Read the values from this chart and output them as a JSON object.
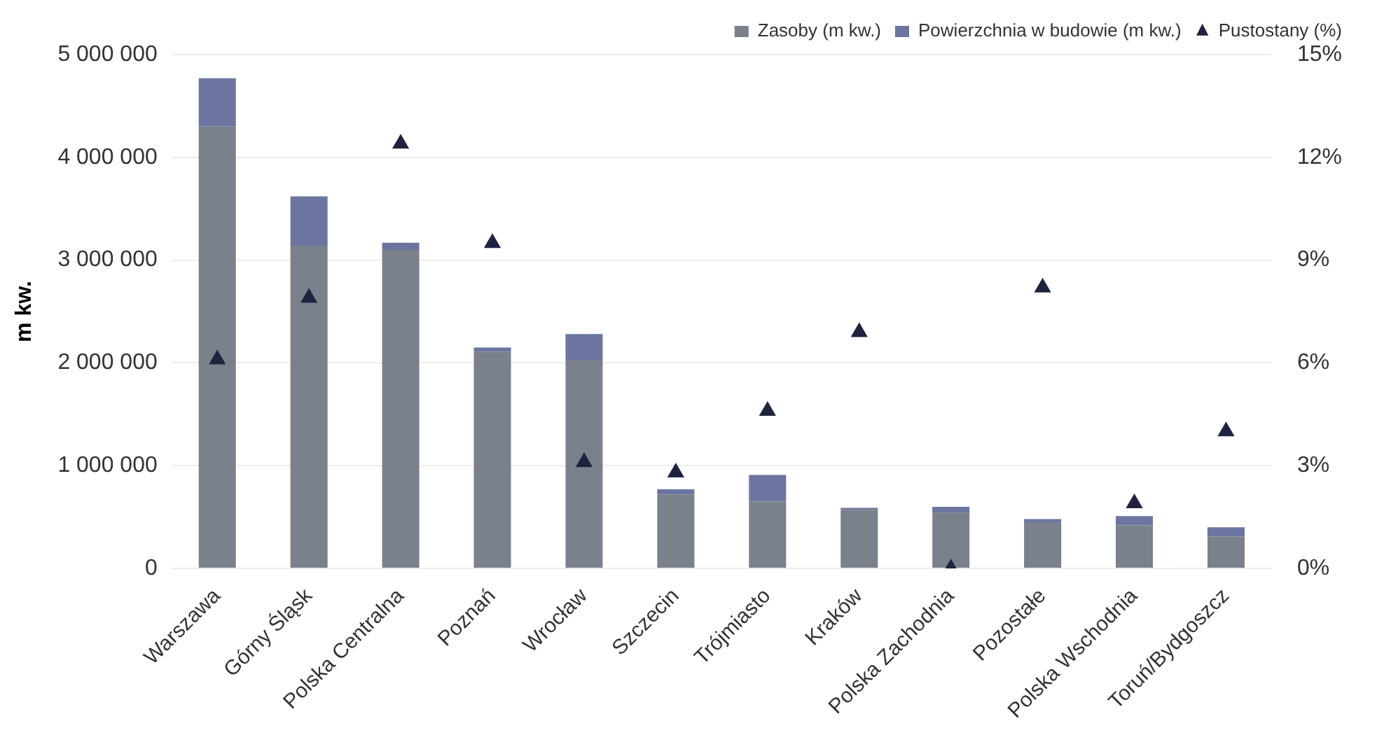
{
  "chart_data": {
    "type": "bar",
    "stacked": true,
    "ylabel": "m kw.",
    "categories": [
      "Warszawa",
      "Górny Śląsk",
      "Polska Centralna",
      "Poznań",
      "Wrocław",
      "Szczecin",
      "Trójmiasto",
      "Kraków",
      "Polska Zachodnia",
      "Pozostałe",
      "Polska Wschodnia",
      "Toruń/Bydgoszcz"
    ],
    "series": [
      {
        "name": "Zasoby (m kw.)",
        "color": "#7b818a",
        "values": [
          4300000,
          3140000,
          3100000,
          2110000,
          2030000,
          720000,
          650000,
          570000,
          540000,
          450000,
          420000,
          310000
        ]
      },
      {
        "name": "Powierzchnia w budowie (m kw.)",
        "color": "#6b75a0",
        "values": [
          470000,
          480000,
          70000,
          40000,
          250000,
          50000,
          260000,
          20000,
          60000,
          30000,
          90000,
          90000
        ]
      },
      {
        "name": "Pustostany (%)",
        "type": "scatter",
        "axis": "y2",
        "marker": "triangle",
        "color": "#1f2340",
        "values": [
          6.1,
          7.9,
          12.4,
          9.5,
          3.1,
          2.8,
          4.6,
          6.9,
          0,
          8.2,
          1.9,
          4.0
        ]
      }
    ],
    "ylim": [
      0,
      5000000
    ],
    "yticks": [
      {
        "value": 0,
        "label": "0"
      },
      {
        "value": 1000000,
        "label": "1 000 000"
      },
      {
        "value": 2000000,
        "label": "2 000 000"
      },
      {
        "value": 3000000,
        "label": "3 000 000"
      },
      {
        "value": 4000000,
        "label": "4 000 000"
      },
      {
        "value": 5000000,
        "label": "5 000 000"
      }
    ],
    "y2lim": [
      0,
      15
    ],
    "y2ticks": [
      {
        "value": 0,
        "label": "0%"
      },
      {
        "value": 3,
        "label": "3%"
      },
      {
        "value": 6,
        "label": "6%"
      },
      {
        "value": 9,
        "label": "9%"
      },
      {
        "value": 12,
        "label": "12%"
      },
      {
        "value": 15,
        "label": "15%"
      }
    ],
    "grid": "y",
    "legend": "top right"
  }
}
